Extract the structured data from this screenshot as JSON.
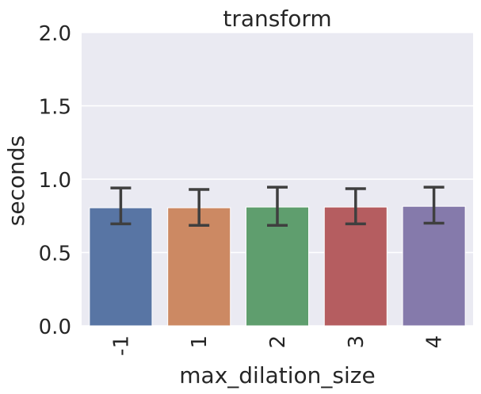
{
  "chart_data": {
    "type": "bar",
    "title": "transform",
    "xlabel": "max_dilation_size",
    "ylabel": "seconds",
    "categories": [
      "-1",
      "1",
      "2",
      "3",
      "4"
    ],
    "values": [
      0.805,
      0.805,
      0.81,
      0.81,
      0.815
    ],
    "error_low": [
      0.695,
      0.685,
      0.685,
      0.695,
      0.7
    ],
    "error_high": [
      0.94,
      0.93,
      0.945,
      0.935,
      0.945
    ],
    "ylim": [
      0,
      2.0
    ],
    "yticks": [
      "0.0",
      "0.5",
      "1.0",
      "1.5",
      "2.0"
    ],
    "ytick_values": [
      0,
      0.5,
      1.0,
      1.5,
      2.0
    ],
    "grid": true,
    "colors": [
      "#5875a4",
      "#cc8963",
      "#5f9e6e",
      "#b55d60",
      "#857aab"
    ],
    "background": "#eaeaf2",
    "errorbar_color": "#3f3f3f"
  }
}
